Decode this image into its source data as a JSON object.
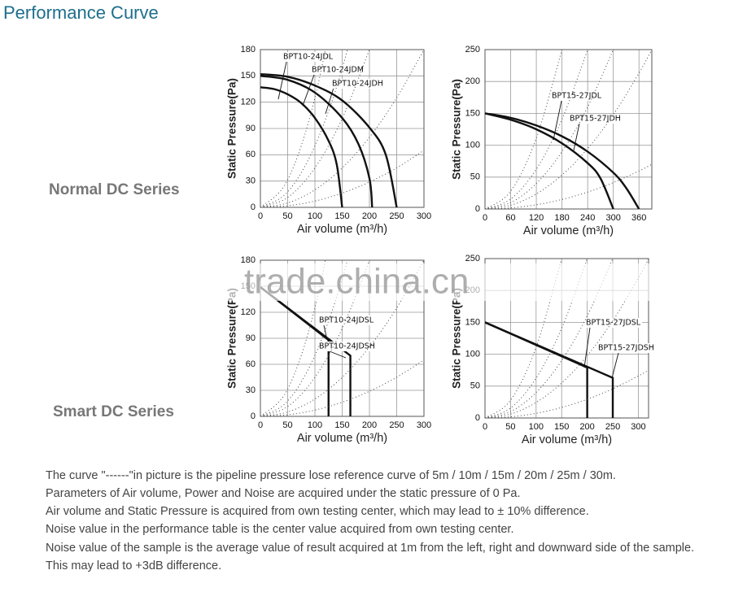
{
  "title": "Performance Curve",
  "sections": [
    "Normal DC Series",
    "Smart DC Series"
  ],
  "watermark": "trade.china.cn",
  "notes": [
    "The curve \"------\"in picture is the pipeline pressure lose reference curve of 5m / 10m / 15m / 20m / 25m / 30m.",
    "Parameters of Air volume, Power and Noise are acquired under the static pressure of 0 Pa.",
    "Air volume and Static Pressure is acquired from own testing center, which may lead to  ± 10% difference.",
    "Noise value in the performance table is the center value acquired from own testing center.",
    "Noise value of the sample is the average value of result acquired at 1m from the left, right and downward side of the sample.",
    "This may lead to +3dB difference."
  ],
  "chart_data": [
    {
      "type": "line",
      "smooth": true,
      "ylabel": "Static Pressure(Pa)",
      "xlabel": "Air volume (m³/h)",
      "xlim": [
        0,
        300
      ],
      "xticks": [
        0,
        50,
        100,
        150,
        200,
        250,
        300
      ],
      "ylim": [
        0,
        180
      ],
      "yticks": [
        0,
        30,
        60,
        90,
        120,
        150,
        180
      ],
      "grid": true,
      "series": [
        {
          "name": "BPT10-24JDL",
          "color": "#111111",
          "style": "solid",
          "x": [
            0,
            25,
            50,
            75,
            100,
            125,
            140,
            150
          ],
          "values": [
            137,
            135,
            129,
            119,
            102,
            76,
            49,
            0
          ]
        },
        {
          "name": "BPT10-24JDM",
          "color": "#111111",
          "style": "solid",
          "x": [
            0,
            50,
            100,
            150,
            180,
            200,
            205
          ],
          "values": [
            150,
            145.5,
            131,
            102,
            72,
            33,
            0
          ]
        },
        {
          "name": "BPT10-24JDH",
          "color": "#111111",
          "style": "solid",
          "x": [
            0,
            50,
            100,
            150,
            200,
            230,
            250
          ],
          "values": [
            152,
            149,
            139,
            122,
            91,
            60,
            0
          ]
        },
        {
          "color": "#444444",
          "style": "dotted",
          "x": [
            0,
            50,
            100,
            150
          ],
          "values": [
            0,
            31.3,
            125,
            281
          ]
        },
        {
          "color": "#444444",
          "style": "dotted",
          "x": [
            0,
            50,
            100,
            150,
            200
          ],
          "values": [
            0,
            17.6,
            70.3,
            158.2,
            281
          ]
        },
        {
          "color": "#444444",
          "style": "dotted",
          "x": [
            0,
            50,
            100,
            150,
            200
          ],
          "values": [
            0,
            11.3,
            45,
            101.3,
            180
          ]
        },
        {
          "color": "#444444",
          "style": "dotted",
          "x": [
            0,
            50,
            100,
            150,
            200,
            250,
            300
          ],
          "values": [
            0,
            5,
            20,
            45,
            80,
            125,
            180
          ]
        },
        {
          "color": "#444444",
          "style": "dotted",
          "x": [
            0,
            50,
            100,
            150,
            200,
            250,
            300
          ],
          "values": [
            0,
            1.8,
            7.2,
            16.3,
            28.9,
            45.1,
            65
          ]
        }
      ]
    },
    {
      "type": "line",
      "smooth": true,
      "ylabel": "Static Pressure(Pa)",
      "xlabel": "Air volume (m³/h)",
      "xlim": [
        0,
        390
      ],
      "xticks": [
        0,
        60,
        120,
        180,
        240,
        300,
        360
      ],
      "ylim": [
        0,
        250
      ],
      "yticks": [
        0,
        50,
        100,
        150,
        200,
        250
      ],
      "grid": true,
      "series": [
        {
          "name": "BPT15-27JDL",
          "color": "#111111",
          "style": "solid",
          "x": [
            0,
            60,
            120,
            180,
            240,
            270,
            300
          ],
          "values": [
            150,
            140,
            125,
            103,
            72,
            48,
            0
          ]
        },
        {
          "name": "BPT15-27JDH",
          "color": "#111111",
          "style": "solid",
          "x": [
            0,
            60,
            120,
            180,
            240,
            300,
            330,
            360
          ],
          "values": [
            150,
            143,
            131,
            114,
            90,
            57,
            33,
            0
          ]
        },
        {
          "color": "#444444",
          "style": "dotted",
          "x": [
            0,
            60,
            120,
            180
          ],
          "values": [
            0,
            27.8,
            111,
            250
          ]
        },
        {
          "color": "#444444",
          "style": "dotted",
          "x": [
            0,
            60,
            120,
            180,
            240
          ],
          "values": [
            0,
            15.6,
            62.5,
            140.6,
            250
          ]
        },
        {
          "color": "#444444",
          "style": "dotted",
          "x": [
            0,
            60,
            120,
            180,
            240,
            300
          ],
          "values": [
            0,
            10,
            40,
            90,
            160,
            250
          ]
        },
        {
          "color": "#444444",
          "style": "dotted",
          "x": [
            0,
            60,
            120,
            180,
            240,
            300,
            360,
            390
          ],
          "values": [
            0,
            5.9,
            23.7,
            53.3,
            94.7,
            148,
            213,
            250
          ]
        },
        {
          "color": "#444444",
          "style": "dotted",
          "x": [
            0,
            60,
            120,
            180,
            240,
            300,
            360,
            390
          ],
          "values": [
            0,
            1.7,
            6.6,
            14.9,
            26.5,
            41.4,
            59.6,
            70
          ]
        }
      ]
    },
    {
      "type": "line",
      "smooth": false,
      "ylabel": "Static Pressure(Pa)",
      "xlabel": "Air volume (m³/h)",
      "xlim": [
        0,
        300
      ],
      "xticks": [
        0,
        50,
        100,
        150,
        200,
        250,
        300
      ],
      "ylim": [
        0,
        180
      ],
      "yticks": [
        0,
        30,
        60,
        90,
        120,
        150,
        180
      ],
      "grid": true,
      "series": [
        {
          "name": "BPT10-24JDSL",
          "color": "#111111",
          "style": "solid",
          "x": [
            0,
            125,
            125
          ],
          "values": [
            149,
            88,
            0
          ]
        },
        {
          "name": "BPT10-24JDSH",
          "color": "#111111",
          "style": "solid",
          "x": [
            0,
            165,
            165
          ],
          "values": [
            149,
            70,
            0
          ]
        },
        {
          "color": "#444444",
          "style": "dotted",
          "x": [
            0,
            50,
            100,
            150
          ],
          "values": [
            0,
            31.3,
            125,
            281
          ]
        },
        {
          "color": "#444444",
          "style": "dotted",
          "x": [
            0,
            50,
            100,
            150,
            200
          ],
          "values": [
            0,
            17.6,
            70.3,
            158.2,
            281
          ]
        },
        {
          "color": "#444444",
          "style": "dotted",
          "x": [
            0,
            50,
            100,
            150,
            200
          ],
          "values": [
            0,
            11.3,
            45,
            101.3,
            180
          ]
        },
        {
          "color": "#444444",
          "style": "dotted",
          "x": [
            0,
            50,
            100,
            150,
            200,
            250,
            300
          ],
          "values": [
            0,
            5,
            20,
            45,
            80,
            125,
            180
          ]
        },
        {
          "color": "#444444",
          "style": "dotted",
          "x": [
            0,
            50,
            100,
            150,
            200,
            250,
            300
          ],
          "values": [
            0,
            1.8,
            7.2,
            16.3,
            28.9,
            45.1,
            65
          ]
        }
      ]
    },
    {
      "type": "line",
      "smooth": false,
      "ylabel": "Static Pressure(Pa)",
      "xlabel": "Air volume (m³/h)",
      "xlim": [
        0,
        320
      ],
      "xticks": [
        0,
        50,
        100,
        150,
        200,
        250,
        300
      ],
      "ylim": [
        0,
        250
      ],
      "yticks": [
        0,
        50,
        100,
        150,
        200,
        250
      ],
      "grid": true,
      "series": [
        {
          "name": "BPT15-27JDSL",
          "color": "#111111",
          "style": "solid",
          "x": [
            0,
            200,
            200
          ],
          "values": [
            150,
            79,
            0
          ]
        },
        {
          "name": "BPT15-27JDSH",
          "color": "#111111",
          "style": "solid",
          "x": [
            0,
            250,
            250
          ],
          "values": [
            150,
            63,
            0
          ]
        },
        {
          "color": "#444444",
          "style": "dotted",
          "x": [
            0,
            50,
            100,
            150
          ],
          "values": [
            0,
            27.8,
            111,
            250
          ]
        },
        {
          "color": "#444444",
          "style": "dotted",
          "x": [
            0,
            50,
            100,
            150,
            200
          ],
          "values": [
            0,
            15.6,
            62.5,
            140.6,
            250
          ]
        },
        {
          "color": "#444444",
          "style": "dotted",
          "x": [
            0,
            50,
            100,
            150,
            200,
            250
          ],
          "values": [
            0,
            10,
            40,
            90,
            160,
            250
          ]
        },
        {
          "color": "#444444",
          "style": "dotted",
          "x": [
            0,
            50,
            100,
            150,
            200,
            250,
            300,
            320
          ],
          "values": [
            0,
            6.1,
            24.4,
            54.9,
            97.7,
            152.6,
            219.7,
            250
          ]
        },
        {
          "color": "#444444",
          "style": "dotted",
          "x": [
            0,
            50,
            100,
            150,
            200,
            250,
            300,
            320
          ],
          "values": [
            0,
            1.8,
            7.3,
            16.5,
            29.3,
            45.8,
            65.9,
            75
          ]
        }
      ]
    }
  ]
}
